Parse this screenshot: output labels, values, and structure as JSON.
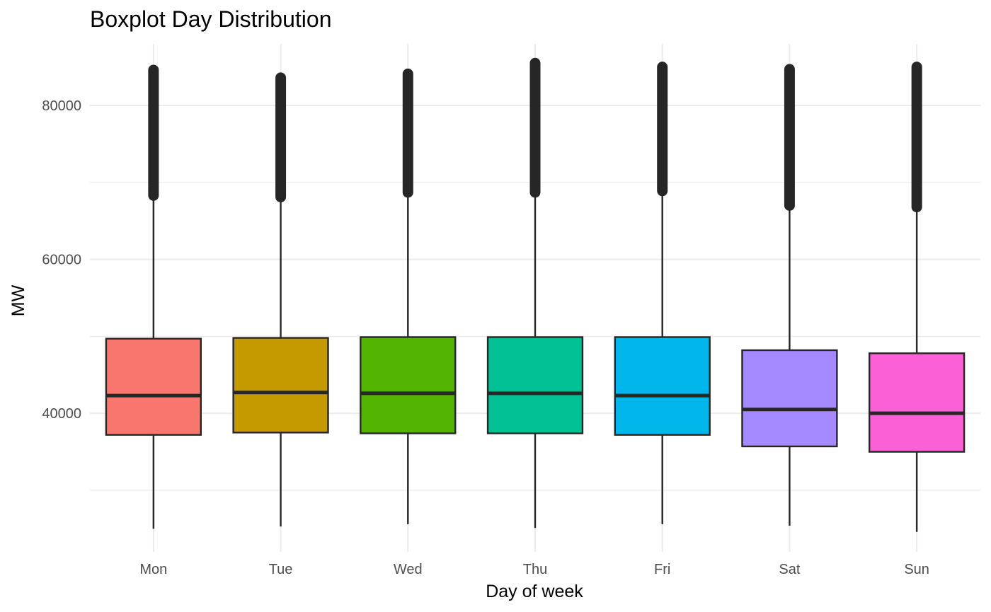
{
  "chart_data": {
    "type": "boxplot",
    "title": "Boxplot Day Distribution",
    "xlabel": "Day of week",
    "ylabel": "MW",
    "ylim": [
      22000,
      88000
    ],
    "yticks": [
      40000,
      60000,
      80000
    ],
    "grid": true,
    "legend": "none",
    "categories": [
      "Mon",
      "Tue",
      "Wed",
      "Thu",
      "Fri",
      "Sat",
      "Sun"
    ],
    "colors": [
      "#F8766D",
      "#C49A00",
      "#53B400",
      "#00C094",
      "#00B6EB",
      "#A58AFF",
      "#FB61D7"
    ],
    "boxes": [
      {
        "category": "Mon",
        "whisker_low": 25000,
        "q1": 37200,
        "median": 42300,
        "q3": 49700,
        "whisker_high": 68300,
        "outlier_max": 84600
      },
      {
        "category": "Tue",
        "whisker_low": 25300,
        "q1": 37500,
        "median": 42700,
        "q3": 49800,
        "whisker_high": 68100,
        "outlier_max": 83600
      },
      {
        "category": "Wed",
        "whisker_low": 25600,
        "q1": 37400,
        "median": 42600,
        "q3": 49900,
        "whisker_high": 68700,
        "outlier_max": 84100
      },
      {
        "category": "Thu",
        "whisker_low": 25100,
        "q1": 37400,
        "median": 42600,
        "q3": 49900,
        "whisker_high": 68700,
        "outlier_max": 85500
      },
      {
        "category": "Fri",
        "whisker_low": 25600,
        "q1": 37200,
        "median": 42300,
        "q3": 49900,
        "whisker_high": 68900,
        "outlier_max": 85000
      },
      {
        "category": "Sat",
        "whisker_low": 25400,
        "q1": 35700,
        "median": 40500,
        "q3": 48200,
        "whisker_high": 67000,
        "outlier_max": 84700
      },
      {
        "category": "Sun",
        "whisker_low": 24600,
        "q1": 35000,
        "median": 40000,
        "q3": 47800,
        "whisker_high": 66800,
        "outlier_max": 85000
      }
    ]
  }
}
